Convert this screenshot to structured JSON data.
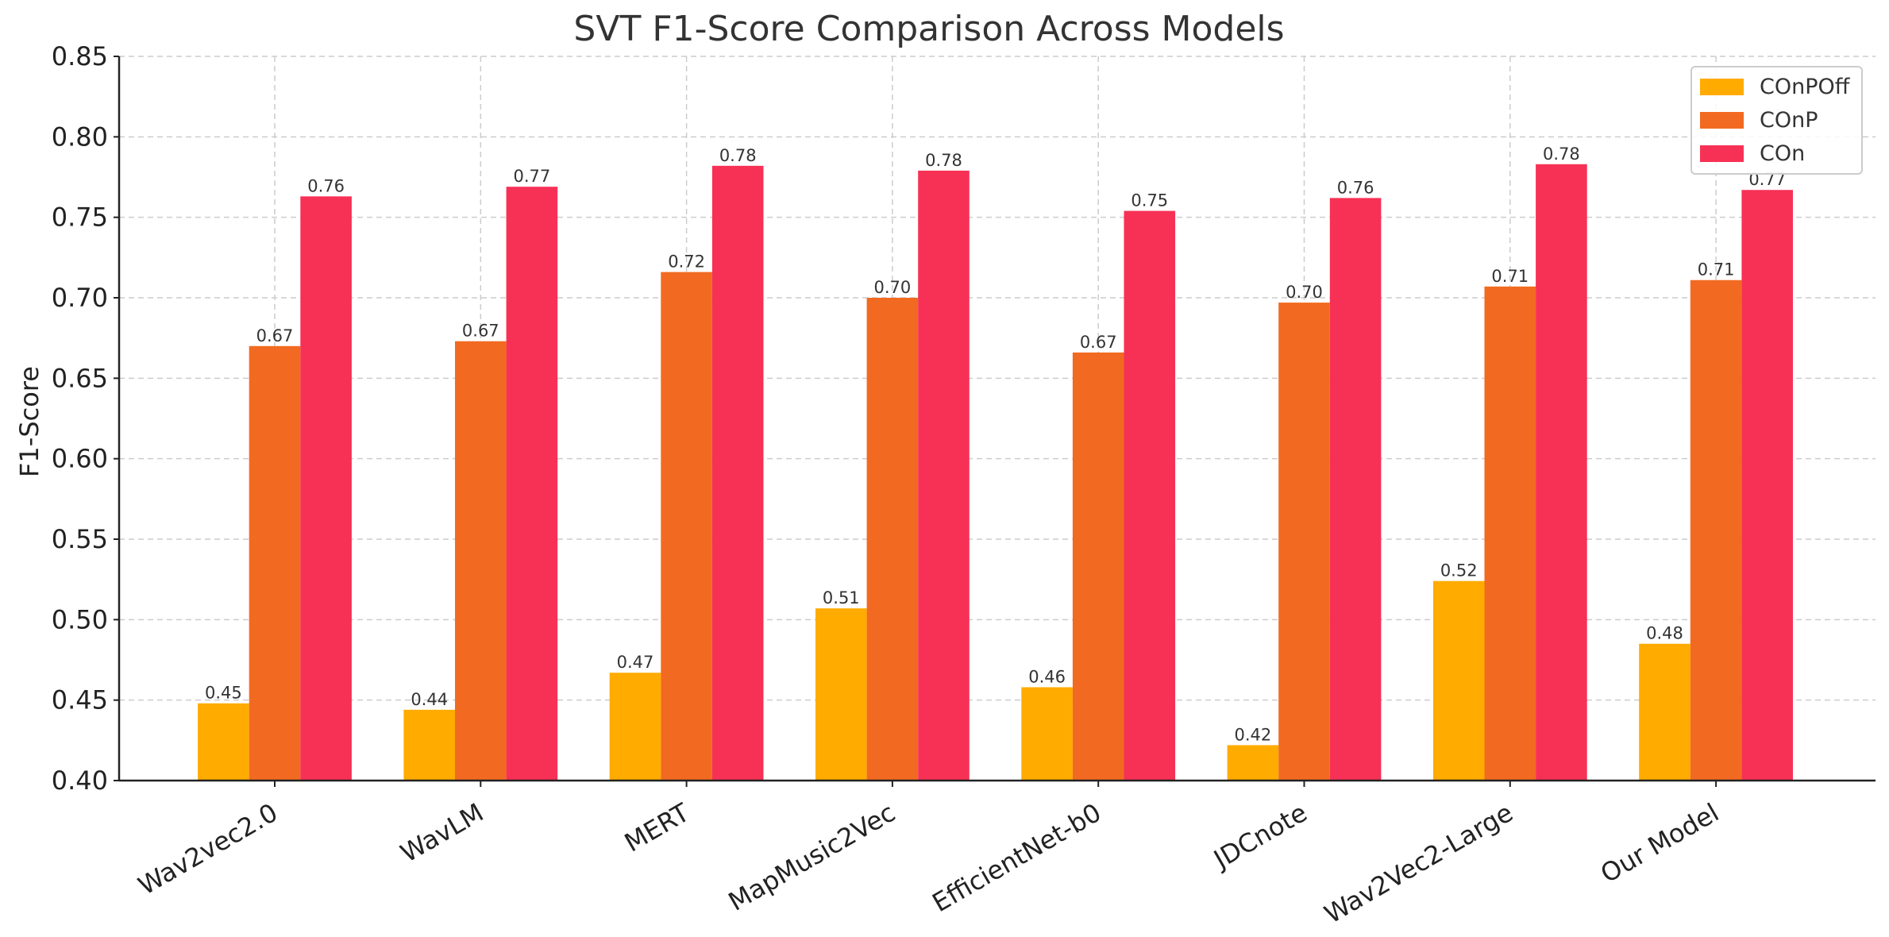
{
  "chart_data": {
    "type": "bar",
    "title": "SVT F1-Score Comparison Across Models",
    "xlabel": "",
    "ylabel": "F1-Score",
    "ylim": [
      0.4,
      0.85
    ],
    "yticks": [
      "0.40",
      "0.45",
      "0.50",
      "0.55",
      "0.60",
      "0.65",
      "0.70",
      "0.75",
      "0.80",
      "0.85"
    ],
    "grid": true,
    "legend_position": "top-right",
    "categories": [
      "Wav2vec2.0",
      "WavLM",
      "MERT",
      "MapMusic2Vec",
      "EfficientNet-b0",
      "JDCnote",
      "Wav2Vec2-Large",
      "Our Model"
    ],
    "series": [
      {
        "name": "COnPOff",
        "color": "#ffab00",
        "values": [
          0.448,
          0.444,
          0.467,
          0.507,
          0.458,
          0.422,
          0.524,
          0.485
        ],
        "labels": [
          "0.45",
          "0.44",
          "0.47",
          "0.51",
          "0.46",
          "0.42",
          "0.52",
          "0.48"
        ]
      },
      {
        "name": "COnP",
        "color": "#f26a21",
        "values": [
          0.67,
          0.673,
          0.716,
          0.7,
          0.666,
          0.697,
          0.707,
          0.711
        ],
        "labels": [
          "0.67",
          "0.67",
          "0.72",
          "0.70",
          "0.67",
          "0.70",
          "0.71",
          "0.71"
        ]
      },
      {
        "name": "COn",
        "color": "#f73155",
        "values": [
          0.763,
          0.769,
          0.782,
          0.779,
          0.754,
          0.762,
          0.783,
          0.767
        ],
        "labels": [
          "0.76",
          "0.77",
          "0.78",
          "0.78",
          "0.75",
          "0.76",
          "0.78",
          "0.77"
        ]
      }
    ]
  }
}
